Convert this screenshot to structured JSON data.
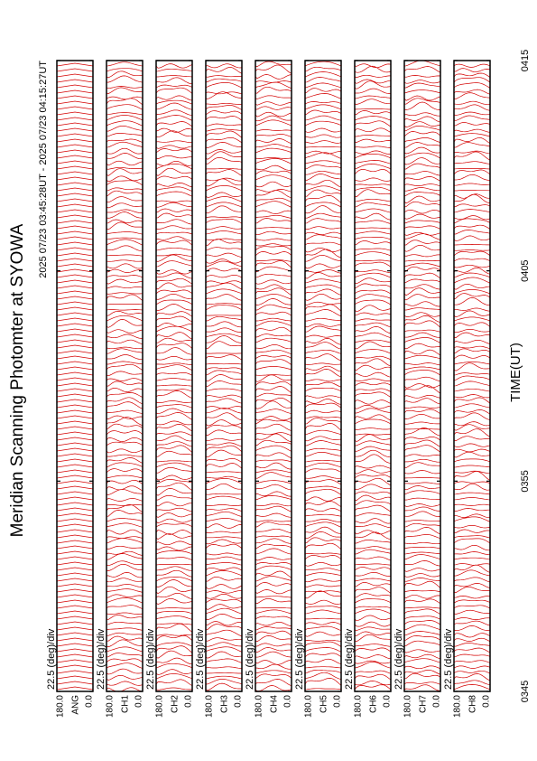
{
  "chart_data": {
    "type": "scan-stack",
    "title": "Meridian Scanning Photomter at SYOWA",
    "subtitle": "2025 07/23 03:45:28UT - 2025 07/23 04:15:27UT",
    "x_label": "TIME(UT)",
    "xlim": [
      225,
      255
    ],
    "xticks": [
      {
        "value": 225,
        "label": "0345"
      },
      {
        "value": 235,
        "label": "0355"
      },
      {
        "value": 245,
        "label": "0405"
      },
      {
        "value": 255,
        "label": "0415"
      }
    ],
    "ylim": [
      0,
      180
    ],
    "yticks": [
      {
        "value": 0,
        "label": "0.0"
      },
      {
        "value": 180,
        "label": "180.0"
      }
    ],
    "scale_label": "22.5 (deg)/div",
    "panels": [
      "ANG",
      "CH1",
      "CH2",
      "CH3",
      "CH4",
      "CH5",
      "CH6",
      "CH7",
      "CH8"
    ],
    "color": "#d40000"
  }
}
